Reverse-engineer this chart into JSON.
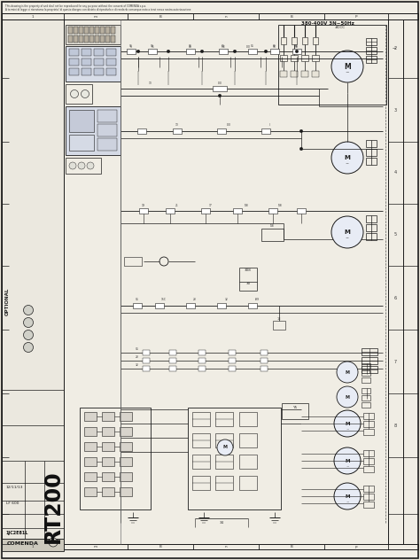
{
  "fig_width": 4.74,
  "fig_height": 6.32,
  "dpi": 100,
  "bg_color": "#e8e4d8",
  "paper_color": "#f0ede4",
  "line_color": "#1a1a1a",
  "dark_line": "#111111",
  "border_color": "#1a1a1a",
  "title_text1": "This drawing is the property of and shall not be reproduced for any purpose without the consent of COMENDA s.p.a.",
  "title_text2": "A termini di legge ci riserviamo la proprieta' di questo disegno con divieto di riprodurlo e di renderlo comunque noto a terzi senza nostra autorizzazione",
  "voltage_label": "380-400V 3N~50Hz",
  "voltage_label2": "#CCC",
  "model_label": "RT200",
  "date_label": "12/11/13",
  "code_label": "LF 600",
  "doc_num": "1JC2E81L",
  "company": "COMENDA",
  "optional_label": "OPTIONAL",
  "col_labels_top": [
    "1",
    "m",
    "B",
    "n",
    "B",
    "p"
  ],
  "col_labels_bot": [
    "1",
    "m",
    "B",
    "n",
    "B",
    "p"
  ],
  "row_labels_right": [
    "2",
    "3",
    "4",
    "5",
    "6",
    "7",
    "8"
  ]
}
